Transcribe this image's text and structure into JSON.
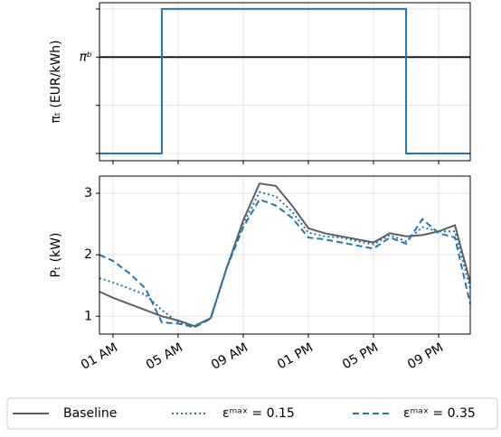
{
  "chart_data": [
    {
      "type": "line",
      "ylabel": "πₜ (EUR/kWh)",
      "grid": true,
      "xlim": [
        0.17,
        22.94
      ],
      "ylim": [
        -0.15,
        3.13
      ],
      "xticks": [
        {
          "value": 1,
          "label": null
        },
        {
          "value": 5,
          "label": null
        },
        {
          "value": 9,
          "label": null
        },
        {
          "value": 13,
          "label": null
        },
        {
          "value": 17,
          "label": null
        },
        {
          "value": 21,
          "label": null
        }
      ],
      "yticks": [
        {
          "value": 0,
          "label": null
        },
        {
          "value": 1,
          "label": null
        },
        {
          "value": 2,
          "label": "πᵇ"
        },
        {
          "value": 3,
          "label": null
        }
      ],
      "hlines": [
        {
          "value": 2,
          "color": "#1a1a1a"
        }
      ],
      "series": [
        {
          "color": "#1f77b4",
          "step": "post",
          "linestyle": "solid",
          "x": [
            0.17,
            4,
            19,
            22.94
          ],
          "values": [
            0,
            3,
            0,
            0
          ]
        }
      ]
    },
    {
      "type": "line",
      "ylabel": "Pₜ (kW)",
      "grid": true,
      "legend": "bottom",
      "xlim": [
        0.17,
        22.94
      ],
      "ylim": [
        0.71,
        3.28
      ],
      "xticks": [
        {
          "value": 1,
          "label": "01 AM"
        },
        {
          "value": 5,
          "label": "05 AM"
        },
        {
          "value": 9,
          "label": "09 AM"
        },
        {
          "value": 13,
          "label": "01 PM"
        },
        {
          "value": 17,
          "label": "05 PM"
        },
        {
          "value": 21,
          "label": "09 PM"
        }
      ],
      "yticks": [
        1,
        2,
        3
      ],
      "x": [
        0.17,
        1,
        2,
        3,
        4,
        5,
        6,
        7,
        8,
        9,
        10,
        11,
        12,
        13,
        14,
        15,
        16,
        17,
        18,
        19,
        20,
        21,
        22,
        22.94
      ],
      "series": [
        {
          "name": "Baseline",
          "color": "#5f5f5f",
          "linestyle": "solid",
          "values": [
            1.4,
            1.3,
            1.2,
            1.1,
            1.0,
            0.93,
            0.84,
            0.97,
            1.8,
            2.56,
            3.16,
            3.12,
            2.8,
            2.43,
            2.35,
            2.3,
            2.25,
            2.2,
            2.35,
            2.3,
            2.32,
            2.38,
            2.48,
            1.55
          ]
        },
        {
          "name": "εᵐᵃˣ = 0.15",
          "color": "#1f77b4",
          "linestyle": "dotted",
          "values": [
            1.62,
            1.55,
            1.45,
            1.35,
            1.1,
            0.9,
            0.83,
            0.97,
            1.8,
            2.5,
            3.02,
            2.95,
            2.7,
            2.36,
            2.3,
            2.28,
            2.22,
            2.17,
            2.32,
            2.22,
            2.45,
            2.38,
            2.38,
            1.45
          ]
        },
        {
          "name": "εᵐᵃˣ = 0.35",
          "color": "#1f77b4",
          "linestyle": "dashed",
          "values": [
            2.0,
            1.9,
            1.7,
            1.45,
            0.9,
            0.88,
            0.82,
            0.96,
            1.8,
            2.45,
            2.9,
            2.8,
            2.6,
            2.28,
            2.25,
            2.2,
            2.15,
            2.1,
            2.28,
            2.18,
            2.58,
            2.35,
            2.28,
            1.2
          ]
        }
      ]
    }
  ]
}
